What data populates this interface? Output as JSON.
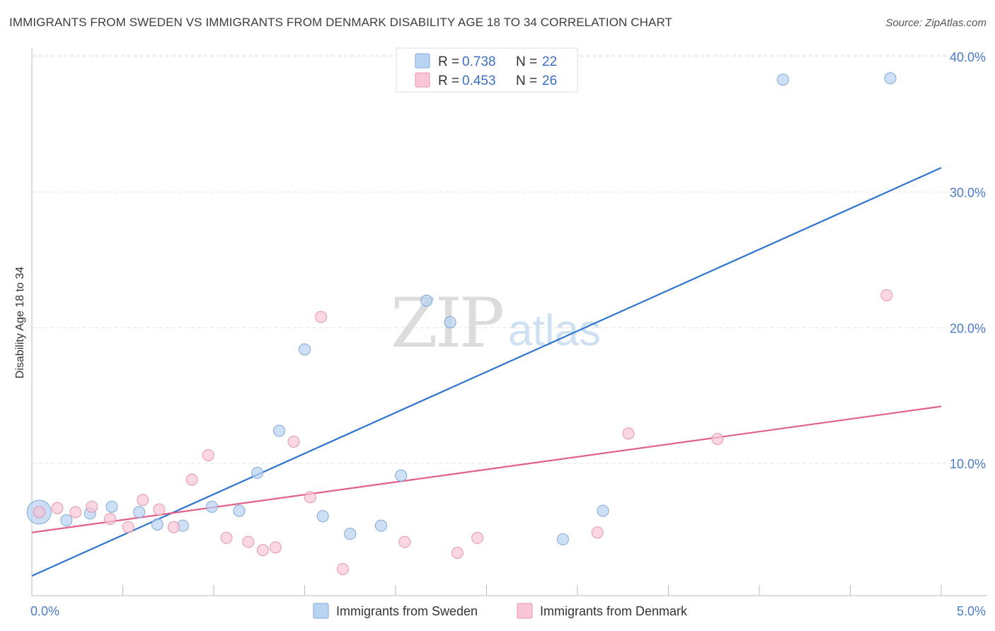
{
  "header": {
    "title": "IMMIGRANTS FROM SWEDEN VS IMMIGRANTS FROM DENMARK DISABILITY AGE 18 TO 34 CORRELATION CHART",
    "source": "Source: ZipAtlas.com"
  },
  "watermark": {
    "zip": "ZIP",
    "atlas": "atlas"
  },
  "colors": {
    "sweden_fill": "#b9d3f2",
    "sweden_stroke": "#7fa8dc",
    "sweden_line": "#2f74d0",
    "denmark_fill": "#f8c6d5",
    "denmark_stroke": "#e896ae",
    "denmark_line": "#e0608a",
    "tick_label": "#4a7cc9"
  },
  "legend": {
    "sweden": {
      "r_label": "R =",
      "r_value": "0.738",
      "n_label": "N =",
      "n_value": "22"
    },
    "denmark": {
      "r_label": "R =",
      "r_value": "0.453",
      "n_label": "N =",
      "n_value": "26"
    }
  },
  "chart_data": {
    "type": "scatter",
    "title": "IMMIGRANTS FROM SWEDEN VS IMMIGRANTS FROM DENMARK DISABILITY AGE 18 TO 34 CORRELATION CHART",
    "xlabel": "",
    "ylabel": "Disability Age 18 to 34",
    "xlim": [
      0,
      5.0
    ],
    "ylim": [
      0,
      41
    ],
    "x_tick_labels": [
      "0.0%",
      "5.0%"
    ],
    "y_ticks": [
      10,
      20,
      30,
      40
    ],
    "y_tick_labels": [
      "10.0%",
      "20.0%",
      "30.0%",
      "40.0%"
    ],
    "grid": true,
    "series": [
      {
        "name": "Immigrants from Sweden",
        "points": [
          {
            "x": 0.04,
            "y": 6.4
          },
          {
            "x": 0.19,
            "y": 5.8
          },
          {
            "x": 0.32,
            "y": 6.3
          },
          {
            "x": 0.44,
            "y": 6.8
          },
          {
            "x": 0.59,
            "y": 6.4
          },
          {
            "x": 0.69,
            "y": 5.5
          },
          {
            "x": 0.83,
            "y": 5.4
          },
          {
            "x": 0.99,
            "y": 6.8
          },
          {
            "x": 1.14,
            "y": 6.5
          },
          {
            "x": 1.24,
            "y": 9.3
          },
          {
            "x": 1.36,
            "y": 12.4
          },
          {
            "x": 1.5,
            "y": 18.4
          },
          {
            "x": 1.6,
            "y": 6.1
          },
          {
            "x": 1.75,
            "y": 4.8
          },
          {
            "x": 1.92,
            "y": 5.4
          },
          {
            "x": 2.03,
            "y": 9.1
          },
          {
            "x": 2.17,
            "y": 22.0
          },
          {
            "x": 2.3,
            "y": 20.4
          },
          {
            "x": 2.92,
            "y": 4.4
          },
          {
            "x": 3.14,
            "y": 6.5
          },
          {
            "x": 4.13,
            "y": 38.3
          },
          {
            "x": 4.72,
            "y": 38.4
          }
        ],
        "trend": {
          "x": [
            0,
            5.0
          ],
          "y": [
            1.7,
            31.8
          ]
        }
      },
      {
        "name": "Immigrants from Denmark",
        "points": [
          {
            "x": 0.04,
            "y": 6.4
          },
          {
            "x": 0.14,
            "y": 6.7
          },
          {
            "x": 0.24,
            "y": 6.4
          },
          {
            "x": 0.33,
            "y": 6.8
          },
          {
            "x": 0.43,
            "y": 5.9
          },
          {
            "x": 0.53,
            "y": 5.3
          },
          {
            "x": 0.61,
            "y": 7.3
          },
          {
            "x": 0.7,
            "y": 6.6
          },
          {
            "x": 0.78,
            "y": 5.3
          },
          {
            "x": 0.88,
            "y": 8.8
          },
          {
            "x": 0.97,
            "y": 10.6
          },
          {
            "x": 1.07,
            "y": 4.5
          },
          {
            "x": 1.19,
            "y": 4.2
          },
          {
            "x": 1.27,
            "y": 3.6
          },
          {
            "x": 1.34,
            "y": 3.8
          },
          {
            "x": 1.44,
            "y": 11.6
          },
          {
            "x": 1.53,
            "y": 7.5
          },
          {
            "x": 1.59,
            "y": 20.8
          },
          {
            "x": 1.71,
            "y": 2.2
          },
          {
            "x": 2.05,
            "y": 4.2
          },
          {
            "x": 2.34,
            "y": 3.4
          },
          {
            "x": 2.45,
            "y": 4.5
          },
          {
            "x": 3.11,
            "y": 4.9
          },
          {
            "x": 3.28,
            "y": 12.2
          },
          {
            "x": 3.77,
            "y": 11.8
          },
          {
            "x": 4.7,
            "y": 22.4
          }
        ],
        "trend": {
          "x": [
            0,
            5.0
          ],
          "y": [
            4.9,
            14.2
          ]
        }
      }
    ]
  },
  "bottom_legend": [
    {
      "label": "Immigrants from Sweden"
    },
    {
      "label": "Immigrants from Denmark"
    }
  ]
}
